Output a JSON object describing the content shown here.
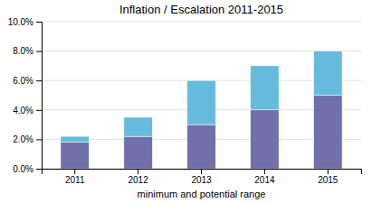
{
  "chart_data": {
    "type": "bar",
    "stacked": true,
    "title": "Inflation / Escalation 2011-2015",
    "xlabel": "minimum and potential range",
    "categories": [
      "2011",
      "2012",
      "2013",
      "2014",
      "2015"
    ],
    "series": [
      {
        "color": "#7070aa",
        "values": [
          1.8,
          2.2,
          3.0,
          4.0,
          5.0
        ]
      },
      {
        "color": "#66bbdd",
        "values": [
          0.4,
          1.3,
          3.0,
          3.0,
          3.0
        ]
      }
    ],
    "ylim": [
      0,
      10
    ],
    "yticks": [
      {
        "value": 0,
        "label": "0.0%"
      },
      {
        "value": 2,
        "label": "2.0%"
      },
      {
        "value": 4,
        "label": "4.0%"
      },
      {
        "value": 6,
        "label": "6.0%"
      },
      {
        "value": 8,
        "label": "8.0%"
      },
      {
        "value": 10,
        "label": "10.0%"
      }
    ],
    "grid": true
  }
}
